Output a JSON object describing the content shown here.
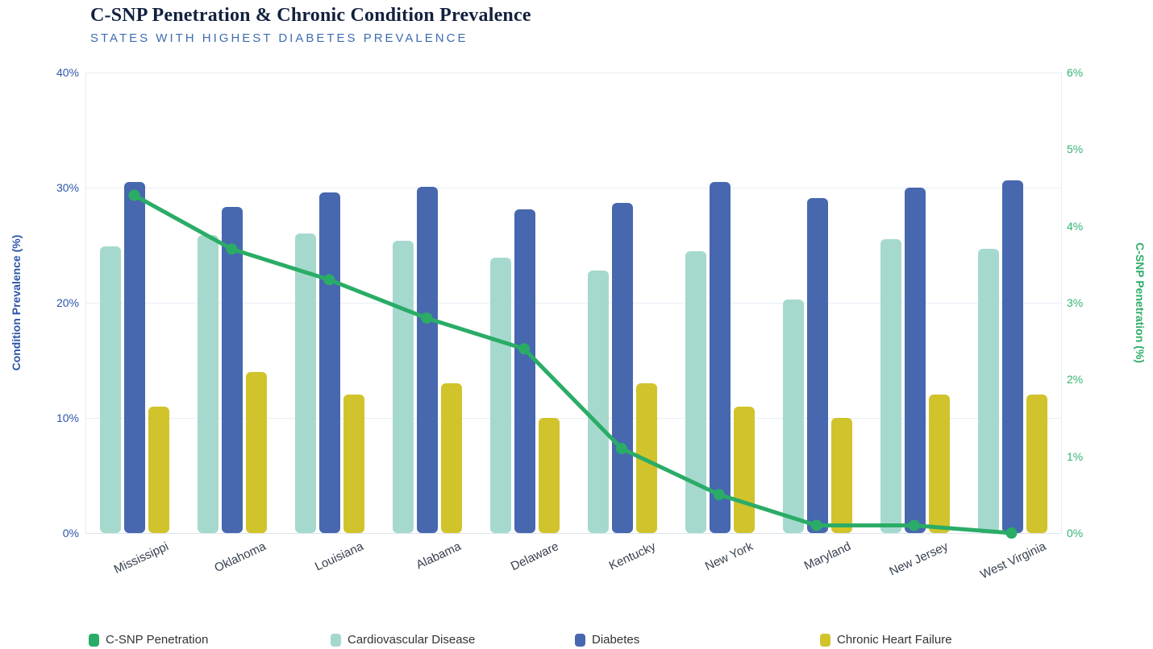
{
  "header": {
    "title": "C-SNP Penetration & Chronic Condition Prevalence",
    "subtitle": "STATES WITH HIGHEST DIABETES PREVALENCE"
  },
  "chart_data": {
    "type": "combo-bar-line",
    "categories": [
      "Mississippi",
      "Oklahoma",
      "Louisiana",
      "Alabama",
      "Delaware",
      "Kentucky",
      "New York",
      "Maryland",
      "New Jersey",
      "West Virginia"
    ],
    "bar_series": [
      {
        "name": "Cardiovascular Disease",
        "color": "#a5d9ce",
        "axis": "left",
        "values": [
          24.9,
          25.9,
          26.0,
          25.4,
          23.9,
          22.8,
          24.5,
          20.3,
          25.5,
          24.7
        ]
      },
      {
        "name": "Diabetes",
        "color": "#4767af",
        "axis": "left",
        "values": [
          30.5,
          28.3,
          29.6,
          30.1,
          28.1,
          28.7,
          30.5,
          29.1,
          30.0,
          30.6
        ]
      },
      {
        "name": "Chronic Heart Failure",
        "color": "#d1c32b",
        "axis": "left",
        "values": [
          11.0,
          14.0,
          12.0,
          13.0,
          10.0,
          13.0,
          11.0,
          10.0,
          12.0,
          12.0
        ]
      }
    ],
    "line_series": {
      "name": "C-SNP Penetration",
      "color": "#2aac67",
      "axis": "right",
      "values": [
        4.4,
        3.7,
        3.3,
        2.8,
        2.4,
        1.1,
        0.5,
        0.1,
        0.1,
        0.0
      ]
    },
    "left_axis": {
      "title": "Condition Prevalence (%)",
      "min": 0,
      "max": 40,
      "ticks": [
        {
          "v": 0,
          "label": "0%"
        },
        {
          "v": 10,
          "label": "10%"
        },
        {
          "v": 20,
          "label": "20%"
        },
        {
          "v": 30,
          "label": "30%"
        },
        {
          "v": 40,
          "label": "40%"
        }
      ]
    },
    "right_axis": {
      "title": "C-SNP Penetration (%)",
      "min": 0,
      "max": 6,
      "ticks": [
        {
          "v": 0,
          "label": "0%"
        },
        {
          "v": 1,
          "label": "1%"
        },
        {
          "v": 2,
          "label": "2%"
        },
        {
          "v": 3,
          "label": "3%"
        },
        {
          "v": 4,
          "label": "4%"
        },
        {
          "v": 5,
          "label": "5%"
        },
        {
          "v": 6,
          "label": "6%"
        }
      ]
    },
    "legend": [
      {
        "label": "C-SNP Penetration",
        "color": "#2aac67"
      },
      {
        "label": "Cardiovascular Disease",
        "color": "#a5d9ce"
      },
      {
        "label": "Diabetes",
        "color": "#4767af"
      },
      {
        "label": "Chronic Heart Failure",
        "color": "#d1c32b"
      }
    ],
    "grid": true,
    "legend_position": "bottom"
  }
}
